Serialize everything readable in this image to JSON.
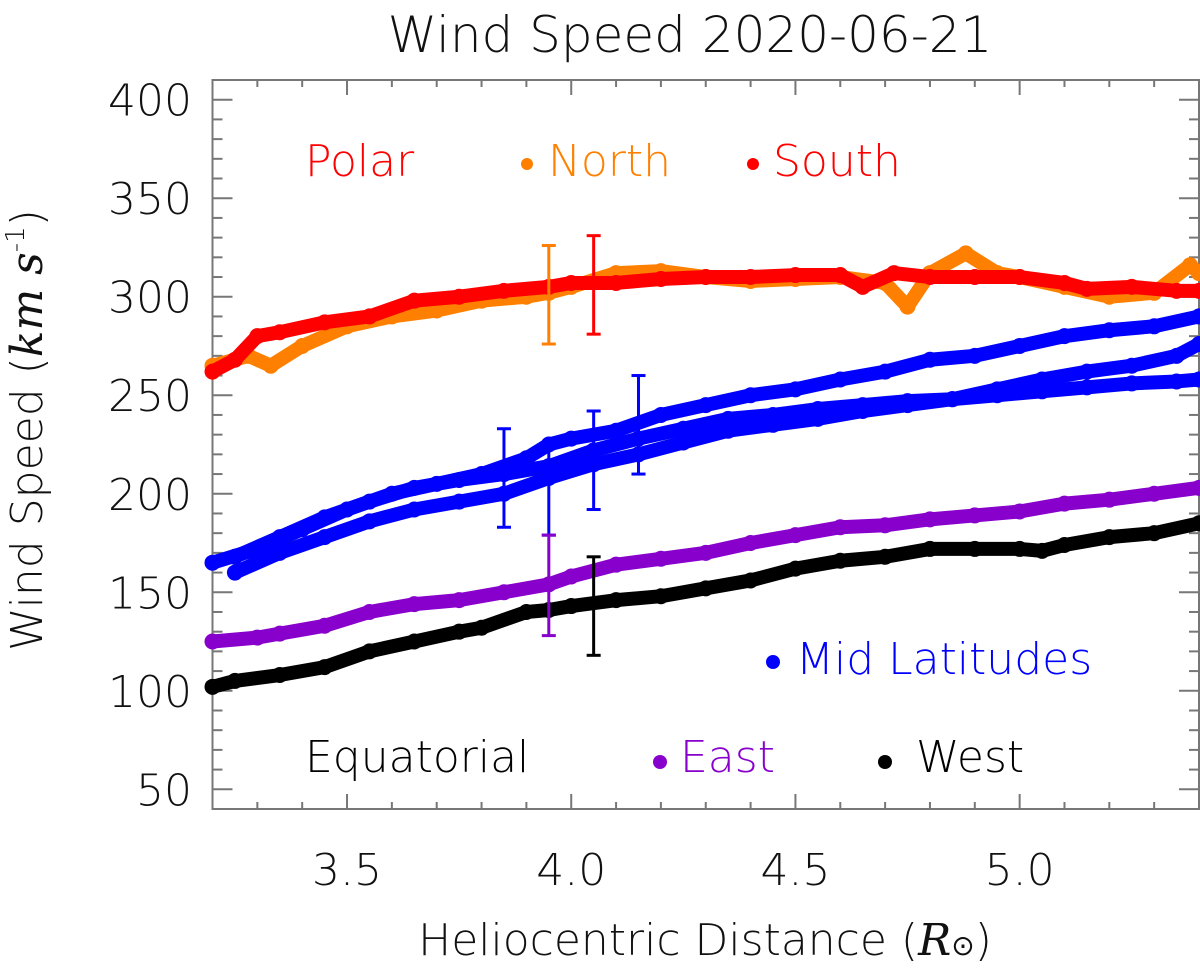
{
  "chart_data": {
    "type": "scatter",
    "title": "Wind Speed 2020-06-21",
    "xlabel": "Heliocentric Distance",
    "xlabel_symbol": "R",
    "xlabel_subscript": "⊙",
    "ylabel": "Wind Speed",
    "ylabel_unit": "km s",
    "ylabel_exponent": "-1",
    "xlim": [
      3.2,
      5.4
    ],
    "ylim": [
      40,
      410
    ],
    "xticks": [
      3.5,
      4.0,
      4.5,
      5.0
    ],
    "xtick_labels": [
      "3.5",
      "4.0",
      "4.5",
      "5.0"
    ],
    "yticks": [
      50,
      100,
      150,
      200,
      250,
      300,
      350,
      400
    ],
    "ytick_labels": [
      "50",
      "100",
      "150",
      "200",
      "250",
      "300",
      "350",
      "400"
    ],
    "grid": false,
    "legend_groups": [
      {
        "heading": "Polar",
        "heading_color": "#ff0000",
        "entries": [
          {
            "name": "North",
            "color": "#ff8000"
          },
          {
            "name": "South",
            "color": "#ff0000"
          }
        ],
        "placement": "top"
      },
      {
        "heading": "",
        "entries": [
          {
            "name": "Mid Latitudes",
            "color": "#0000ff"
          }
        ],
        "placement": "lower-right"
      },
      {
        "heading": "Equatorial",
        "heading_color": "#000000",
        "entries": [
          {
            "name": "East",
            "color": "#8800cc"
          },
          {
            "name": "West",
            "color": "#000000"
          }
        ],
        "placement": "bottom"
      }
    ],
    "series": [
      {
        "name": "North",
        "color": "#ff8000",
        "x": [
          3.2,
          3.28,
          3.33,
          3.4,
          3.5,
          3.6,
          3.7,
          3.8,
          3.9,
          3.95,
          4.0,
          4.1,
          4.2,
          4.3,
          4.4,
          4.5,
          4.6,
          4.7,
          4.75,
          4.8,
          4.88,
          4.95,
          5.0,
          5.1,
          5.2,
          5.3,
          5.38,
          5.4
        ],
        "y": [
          265,
          270,
          265,
          275,
          285,
          290,
          293,
          298,
          300,
          302,
          305,
          312,
          313,
          310,
          308,
          309,
          310,
          307,
          295,
          312,
          322,
          312,
          310,
          305,
          300,
          302,
          316,
          312
        ]
      },
      {
        "name": "South",
        "color": "#ff0000",
        "x": [
          3.2,
          3.25,
          3.3,
          3.35,
          3.45,
          3.55,
          3.65,
          3.75,
          3.85,
          3.95,
          4.0,
          4.1,
          4.2,
          4.3,
          4.4,
          4.5,
          4.6,
          4.65,
          4.72,
          4.8,
          4.9,
          5.0,
          5.1,
          5.15,
          5.25,
          5.35,
          5.4
        ],
        "y": [
          262,
          268,
          280,
          282,
          287,
          290,
          298,
          300,
          303,
          305,
          307,
          307,
          309,
          310,
          310,
          311,
          311,
          305,
          312,
          310,
          310,
          310,
          307,
          304,
          305,
          303,
          303
        ]
      },
      {
        "name": "Mid Latitudes",
        "color": "#0000ff",
        "x": [
          3.2,
          3.3,
          3.4,
          3.5,
          3.6,
          3.7,
          3.8,
          3.9,
          3.95,
          4.0,
          4.1,
          4.2,
          4.3,
          4.4,
          4.5,
          4.6,
          4.7,
          4.8,
          4.9,
          5.0,
          5.1,
          5.2,
          5.3,
          5.4
        ],
        "y": [
          165,
          172,
          182,
          192,
          200,
          205,
          210,
          218,
          225,
          228,
          232,
          240,
          245,
          250,
          253,
          258,
          262,
          268,
          270,
          275,
          280,
          283,
          285,
          290
        ]
      },
      {
        "name": "Mid Latitudes",
        "color": "#0000ff",
        "x": [
          3.25,
          3.35,
          3.45,
          3.55,
          3.65,
          3.75,
          3.85,
          3.95,
          4.05,
          4.15,
          4.25,
          4.35,
          4.45,
          4.55,
          4.65,
          4.75,
          4.85,
          4.95,
          5.05,
          5.15,
          5.25,
          5.35,
          5.4
        ],
        "y": [
          168,
          178,
          188,
          196,
          203,
          207,
          210,
          214,
          222,
          228,
          233,
          238,
          240,
          243,
          245,
          247,
          248,
          250,
          252,
          254,
          256,
          257,
          258
        ]
      },
      {
        "name": "Mid Latitudes",
        "color": "#0000ff",
        "x": [
          3.25,
          3.35,
          3.45,
          3.55,
          3.65,
          3.75,
          3.85,
          3.95,
          4.05,
          4.15,
          4.25,
          4.35,
          4.45,
          4.55,
          4.65,
          4.75,
          4.85,
          4.95,
          5.05,
          5.15,
          5.25,
          5.35,
          5.4
        ],
        "y": [
          160,
          170,
          178,
          186,
          192,
          196,
          200,
          208,
          215,
          220,
          226,
          232,
          235,
          238,
          242,
          245,
          248,
          253,
          258,
          262,
          265,
          270,
          276
        ]
      },
      {
        "name": "East",
        "color": "#8800cc",
        "x": [
          3.2,
          3.3,
          3.35,
          3.45,
          3.55,
          3.65,
          3.75,
          3.85,
          3.95,
          4.0,
          4.1,
          4.2,
          4.3,
          4.4,
          4.5,
          4.6,
          4.7,
          4.8,
          4.9,
          5.0,
          5.1,
          5.2,
          5.3,
          5.4
        ],
        "y": [
          125,
          127,
          129,
          133,
          140,
          144,
          146,
          150,
          154,
          158,
          164,
          167,
          170,
          175,
          179,
          183,
          184,
          187,
          189,
          191,
          195,
          197,
          200,
          203
        ]
      },
      {
        "name": "West",
        "color": "#000000",
        "x": [
          3.2,
          3.25,
          3.35,
          3.45,
          3.55,
          3.65,
          3.75,
          3.8,
          3.9,
          3.95,
          4.0,
          4.1,
          4.2,
          4.3,
          4.4,
          4.5,
          4.6,
          4.7,
          4.8,
          4.9,
          5.0,
          5.05,
          5.1,
          5.2,
          5.3,
          5.4
        ],
        "y": [
          102,
          105,
          108,
          112,
          120,
          125,
          130,
          132,
          140,
          141,
          143,
          146,
          148,
          152,
          156,
          162,
          166,
          168,
          172,
          172,
          172,
          171,
          174,
          178,
          180,
          185
        ]
      }
    ],
    "error_bars": [
      {
        "color": "#ff8000",
        "x": 3.95,
        "low": 276,
        "high": 326
      },
      {
        "color": "#ff0000",
        "x": 4.05,
        "low": 281,
        "high": 331
      },
      {
        "color": "#0000ff",
        "x": 3.85,
        "low": 183,
        "high": 233
      },
      {
        "color": "#0000ff",
        "x": 3.95,
        "low": 179,
        "high": 225
      },
      {
        "color": "#0000ff",
        "x": 4.05,
        "low": 192,
        "high": 242
      },
      {
        "color": "#0000ff",
        "x": 4.15,
        "low": 210,
        "high": 260
      },
      {
        "color": "#8800cc",
        "x": 3.95,
        "low": 128,
        "high": 179
      },
      {
        "color": "#000000",
        "x": 4.05,
        "low": 118,
        "high": 168
      }
    ]
  }
}
